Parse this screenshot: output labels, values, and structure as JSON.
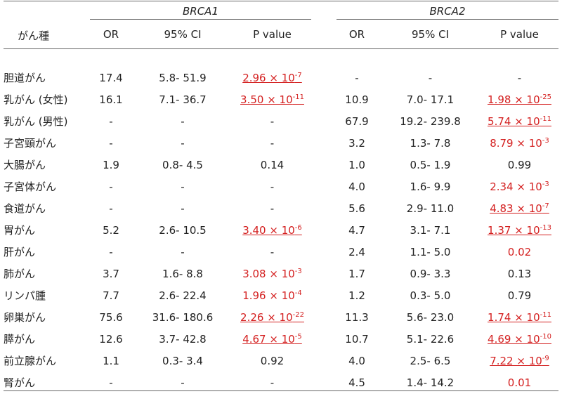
{
  "header": {
    "cancer_type": "がん種",
    "group1": "BRCA1",
    "group2": "BRCA2",
    "or": "OR",
    "ci": "95% CI",
    "p": "P value"
  },
  "rows": [
    {
      "name": "胆道がん",
      "or1": "17.4",
      "ci1": "5.8- 51.9",
      "p1": {
        "text": "2.96 × 10",
        "exp": "-7",
        "sig": true,
        "ul": true
      },
      "or2": "-",
      "ci2": "-",
      "p2": {
        "text": "-",
        "exp": "",
        "sig": false,
        "ul": false
      }
    },
    {
      "name": "乳がん (女性)",
      "or1": "16.1",
      "ci1": "7.1- 36.7",
      "p1": {
        "text": "3.50 × 10",
        "exp": "-11",
        "sig": true,
        "ul": true
      },
      "or2": "10.9",
      "ci2": "7.0- 17.1",
      "p2": {
        "text": "1.98 × 10",
        "exp": "-25",
        "sig": true,
        "ul": true
      }
    },
    {
      "name": "乳がん (男性)",
      "or1": "-",
      "ci1": "-",
      "p1": {
        "text": "-",
        "exp": "",
        "sig": false,
        "ul": false
      },
      "or2": "67.9",
      "ci2": "19.2- 239.8",
      "p2": {
        "text": "5.74 × 10",
        "exp": "-11",
        "sig": true,
        "ul": true
      }
    },
    {
      "name": "子宮頸がん",
      "or1": "-",
      "ci1": "-",
      "p1": {
        "text": "-",
        "exp": "",
        "sig": false,
        "ul": false
      },
      "or2": "3.2",
      "ci2": "1.3- 7.8",
      "p2": {
        "text": "8.79 × 10",
        "exp": "-3",
        "sig": true,
        "ul": false
      }
    },
    {
      "name": "大腸がん",
      "or1": "1.9",
      "ci1": "0.8- 4.5",
      "p1": {
        "text": "0.14",
        "exp": "",
        "sig": false,
        "ul": false
      },
      "or2": "1.0",
      "ci2": "0.5- 1.9",
      "p2": {
        "text": "0.99",
        "exp": "",
        "sig": false,
        "ul": false
      }
    },
    {
      "name": "子宮体がん",
      "or1": "-",
      "ci1": "-",
      "p1": {
        "text": "-",
        "exp": "",
        "sig": false,
        "ul": false
      },
      "or2": "4.0",
      "ci2": "1.6- 9.9",
      "p2": {
        "text": "2.34 × 10",
        "exp": "-3",
        "sig": true,
        "ul": false
      }
    },
    {
      "name": "食道がん",
      "or1": "-",
      "ci1": "-",
      "p1": {
        "text": "-",
        "exp": "",
        "sig": false,
        "ul": false
      },
      "or2": "5.6",
      "ci2": "2.9- 11.0",
      "p2": {
        "text": "4.83 × 10",
        "exp": "-7",
        "sig": true,
        "ul": true
      }
    },
    {
      "name": "胃がん",
      "or1": "5.2",
      "ci1": "2.6- 10.5",
      "p1": {
        "text": "3.40 × 10",
        "exp": "-6",
        "sig": true,
        "ul": true
      },
      "or2": "4.7",
      "ci2": "3.1- 7.1",
      "p2": {
        "text": "1.37 × 10",
        "exp": "-13",
        "sig": true,
        "ul": true
      }
    },
    {
      "name": "肝がん",
      "or1": "-",
      "ci1": "-",
      "p1": {
        "text": "-",
        "exp": "",
        "sig": false,
        "ul": false
      },
      "or2": "2.4",
      "ci2": "1.1- 5.0",
      "p2": {
        "text": "0.02",
        "exp": "",
        "sig": true,
        "ul": false
      }
    },
    {
      "name": "肺がん",
      "or1": "3.7",
      "ci1": "1.6- 8.8",
      "p1": {
        "text": "3.08 × 10",
        "exp": "-3",
        "sig": true,
        "ul": false
      },
      "or2": "1.7",
      "ci2": "0.9- 3.3",
      "p2": {
        "text": "0.13",
        "exp": "",
        "sig": false,
        "ul": false
      }
    },
    {
      "name": "リンパ腫",
      "or1": "7.7",
      "ci1": "2.6- 22.4",
      "p1": {
        "text": "1.96 × 10",
        "exp": "-4",
        "sig": true,
        "ul": false
      },
      "or2": "1.2",
      "ci2": "0.3- 5.0",
      "p2": {
        "text": "0.79",
        "exp": "",
        "sig": false,
        "ul": false
      }
    },
    {
      "name": "卵巣がん",
      "or1": "75.6",
      "ci1": "31.6- 180.6",
      "p1": {
        "text": "2.26 × 10",
        "exp": "-22",
        "sig": true,
        "ul": true
      },
      "or2": "11.3",
      "ci2": "5.6- 23.0",
      "p2": {
        "text": "1.74 × 10",
        "exp": "-11",
        "sig": true,
        "ul": true
      }
    },
    {
      "name": "膵がん",
      "or1": "12.6",
      "ci1": "3.7- 42.8",
      "p1": {
        "text": "4.67 × 10",
        "exp": "-5",
        "sig": true,
        "ul": true
      },
      "or2": "10.7",
      "ci2": "5.1- 22.6",
      "p2": {
        "text": "4.69 × 10",
        "exp": "-10",
        "sig": true,
        "ul": true
      }
    },
    {
      "name": "前立腺がん",
      "or1": "1.1",
      "ci1": "0.3- 3.4",
      "p1": {
        "text": "0.92",
        "exp": "",
        "sig": false,
        "ul": false
      },
      "or2": "4.0",
      "ci2": "2.5- 6.5",
      "p2": {
        "text": "7.22 × 10",
        "exp": "-9",
        "sig": true,
        "ul": true
      }
    },
    {
      "name": "腎がん",
      "or1": "-",
      "ci1": "-",
      "p1": {
        "text": "-",
        "exp": "",
        "sig": false,
        "ul": false
      },
      "or2": "4.5",
      "ci2": "1.4- 14.2",
      "p2": {
        "text": "0.01",
        "exp": "",
        "sig": true,
        "ul": false
      }
    }
  ]
}
